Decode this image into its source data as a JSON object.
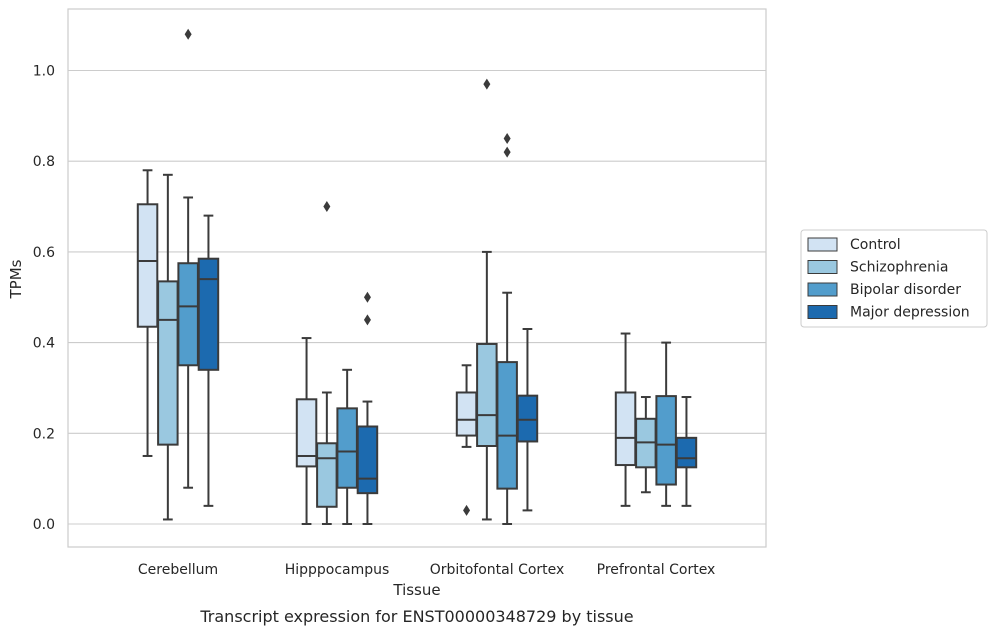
{
  "chart_data": {
    "type": "box",
    "xlabel": "Tissue",
    "ylabel": "TPMs",
    "caption": "Transcript expression for ENST00000348729 by tissue",
    "ylim": [
      -0.05,
      1.14
    ],
    "yticks": [
      "0.0",
      "0.2",
      "0.4",
      "0.6",
      "0.8",
      "1.0"
    ],
    "grid": "horizontal",
    "legend_position": "right",
    "categories": [
      "Cerebellum",
      "Hipppocampus",
      "Orbitofontal Cortex",
      "Prefrontal Cortex"
    ],
    "series": [
      {
        "name": "Control",
        "color": "#d2e3f3",
        "boxes": [
          {
            "whislo": 0.15,
            "q1": 0.435,
            "med": 0.58,
            "q3": 0.705,
            "whishi": 0.78,
            "fliers": []
          },
          {
            "whislo": 0.0,
            "q1": 0.127,
            "med": 0.15,
            "q3": 0.275,
            "whishi": 0.41,
            "fliers": []
          },
          {
            "whislo": 0.17,
            "q1": 0.195,
            "med": 0.23,
            "q3": 0.29,
            "whishi": 0.35,
            "fliers": [
              0.03
            ]
          },
          {
            "whislo": 0.04,
            "q1": 0.13,
            "med": 0.19,
            "q3": 0.29,
            "whishi": 0.42,
            "fliers": []
          }
        ]
      },
      {
        "name": "Schizophrenia",
        "color": "#9ac8e0",
        "boxes": [
          {
            "whislo": 0.01,
            "q1": 0.175,
            "med": 0.45,
            "q3": 0.535,
            "whishi": 0.77,
            "fliers": []
          },
          {
            "whislo": 0.0,
            "q1": 0.038,
            "med": 0.145,
            "q3": 0.178,
            "whishi": 0.29,
            "fliers": [
              0.7
            ]
          },
          {
            "whislo": 0.01,
            "q1": 0.172,
            "med": 0.24,
            "q3": 0.397,
            "whishi": 0.6,
            "fliers": [
              0.97
            ]
          },
          {
            "whislo": 0.07,
            "q1": 0.125,
            "med": 0.18,
            "q3": 0.232,
            "whishi": 0.28,
            "fliers": []
          }
        ]
      },
      {
        "name": "Bipolar disorder",
        "color": "#529dcc",
        "boxes": [
          {
            "whislo": 0.08,
            "q1": 0.35,
            "med": 0.48,
            "q3": 0.575,
            "whishi": 0.72,
            "fliers": [
              1.08
            ]
          },
          {
            "whislo": 0.0,
            "q1": 0.08,
            "med": 0.16,
            "q3": 0.255,
            "whishi": 0.34,
            "fliers": []
          },
          {
            "whislo": 0.0,
            "q1": 0.078,
            "med": 0.195,
            "q3": 0.357,
            "whishi": 0.51,
            "fliers": [
              0.85,
              0.82
            ]
          },
          {
            "whislo": 0.04,
            "q1": 0.087,
            "med": 0.175,
            "q3": 0.282,
            "whishi": 0.4,
            "fliers": []
          }
        ]
      },
      {
        "name": "Major depression",
        "color": "#1c6aaf",
        "boxes": [
          {
            "whislo": 0.04,
            "q1": 0.34,
            "med": 0.54,
            "q3": 0.585,
            "whishi": 0.68,
            "fliers": []
          },
          {
            "whislo": 0.0,
            "q1": 0.068,
            "med": 0.1,
            "q3": 0.215,
            "whishi": 0.27,
            "fliers": [
              0.5,
              0.45
            ]
          },
          {
            "whislo": 0.03,
            "q1": 0.182,
            "med": 0.23,
            "q3": 0.283,
            "whishi": 0.43,
            "fliers": []
          },
          {
            "whislo": 0.04,
            "q1": 0.125,
            "med": 0.145,
            "q3": 0.19,
            "whishi": 0.28,
            "fliers": []
          }
        ]
      }
    ]
  }
}
